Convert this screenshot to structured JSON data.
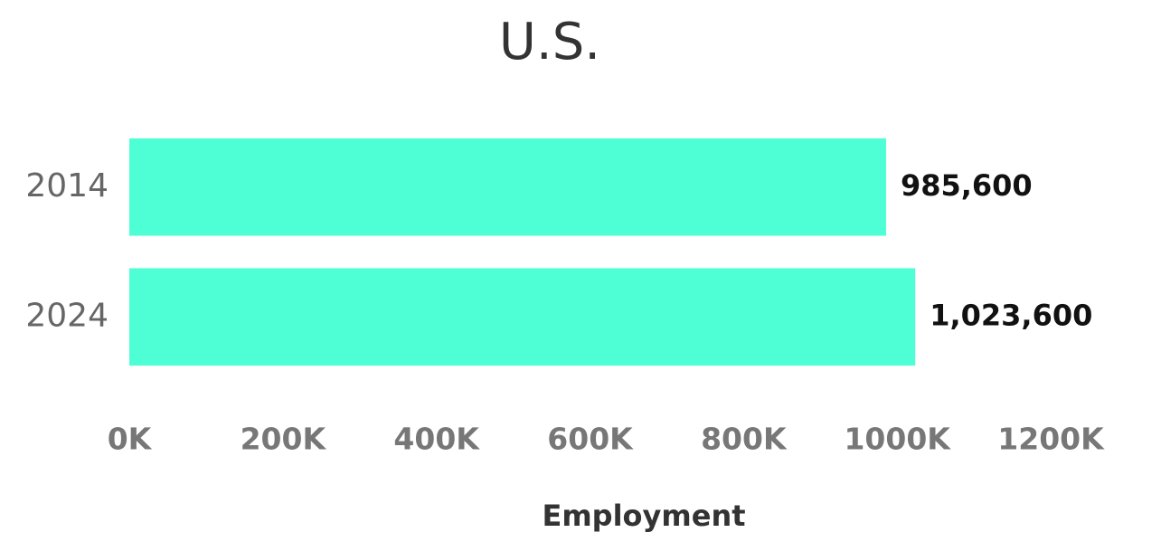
{
  "chart_data": {
    "type": "barh",
    "title": "U.S.",
    "categories": [
      "2014",
      "2024"
    ],
    "values": [
      985600,
      1023600
    ],
    "value_labels": [
      "985,600",
      "1,023,600"
    ],
    "color": "#4effd6",
    "xlabel": "Employment",
    "xlim": [
      0,
      1200000
    ],
    "xticks": [
      {
        "value": 0,
        "label": "0K"
      },
      {
        "value": 200000,
        "label": "200K"
      },
      {
        "value": 400000,
        "label": "400K"
      },
      {
        "value": 600000,
        "label": "600K"
      },
      {
        "value": 800000,
        "label": "800K"
      },
      {
        "value": 1000000,
        "label": "1000K"
      },
      {
        "value": 1200000,
        "label": "1200K"
      }
    ],
    "grid": false
  }
}
